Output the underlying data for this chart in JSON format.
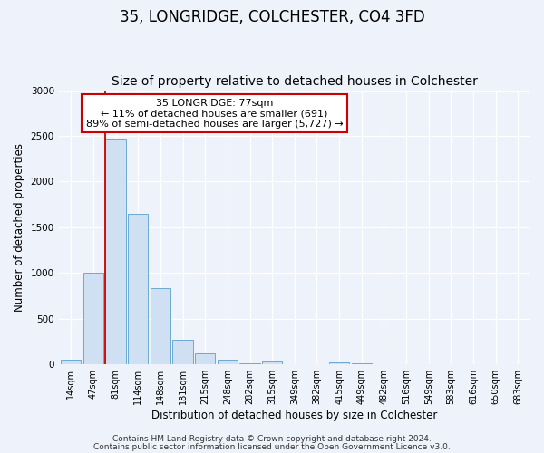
{
  "title": "35, LONGRIDGE, COLCHESTER, CO4 3FD",
  "subtitle": "Size of property relative to detached houses in Colchester",
  "xlabel": "Distribution of detached houses by size in Colchester",
  "ylabel": "Number of detached properties",
  "categories": [
    "14sqm",
    "47sqm",
    "81sqm",
    "114sqm",
    "148sqm",
    "181sqm",
    "215sqm",
    "248sqm",
    "282sqm",
    "315sqm",
    "349sqm",
    "382sqm",
    "415sqm",
    "449sqm",
    "482sqm",
    "516sqm",
    "549sqm",
    "583sqm",
    "616sqm",
    "650sqm",
    "683sqm"
  ],
  "values": [
    55,
    1000,
    2470,
    1650,
    830,
    270,
    125,
    50,
    10,
    30,
    0,
    0,
    25,
    10,
    0,
    0,
    0,
    0,
    0,
    0,
    0
  ],
  "bar_color": "#cfe0f2",
  "bar_edge_color": "#6aaad4",
  "marker_index": 2,
  "marker_color": "#cc0000",
  "annotation_line1": "35 LONGRIDGE: 77sqm",
  "annotation_line2": "← 11% of detached houses are smaller (691)",
  "annotation_line3": "89% of semi-detached houses are larger (5,727) →",
  "annotation_box_color": "#ffffff",
  "annotation_box_edge": "#cc0000",
  "ylim": [
    0,
    3000
  ],
  "yticks": [
    0,
    500,
    1000,
    1500,
    2000,
    2500,
    3000
  ],
  "background_color": "#eef2fa",
  "footer_line1": "Contains HM Land Registry data © Crown copyright and database right 2024.",
  "footer_line2": "Contains public sector information licensed under the Open Government Licence v3.0.",
  "title_fontsize": 12,
  "subtitle_fontsize": 10,
  "axis_label_fontsize": 8.5,
  "tick_fontsize": 7,
  "footer_fontsize": 6.5,
  "annotation_fontsize": 8
}
